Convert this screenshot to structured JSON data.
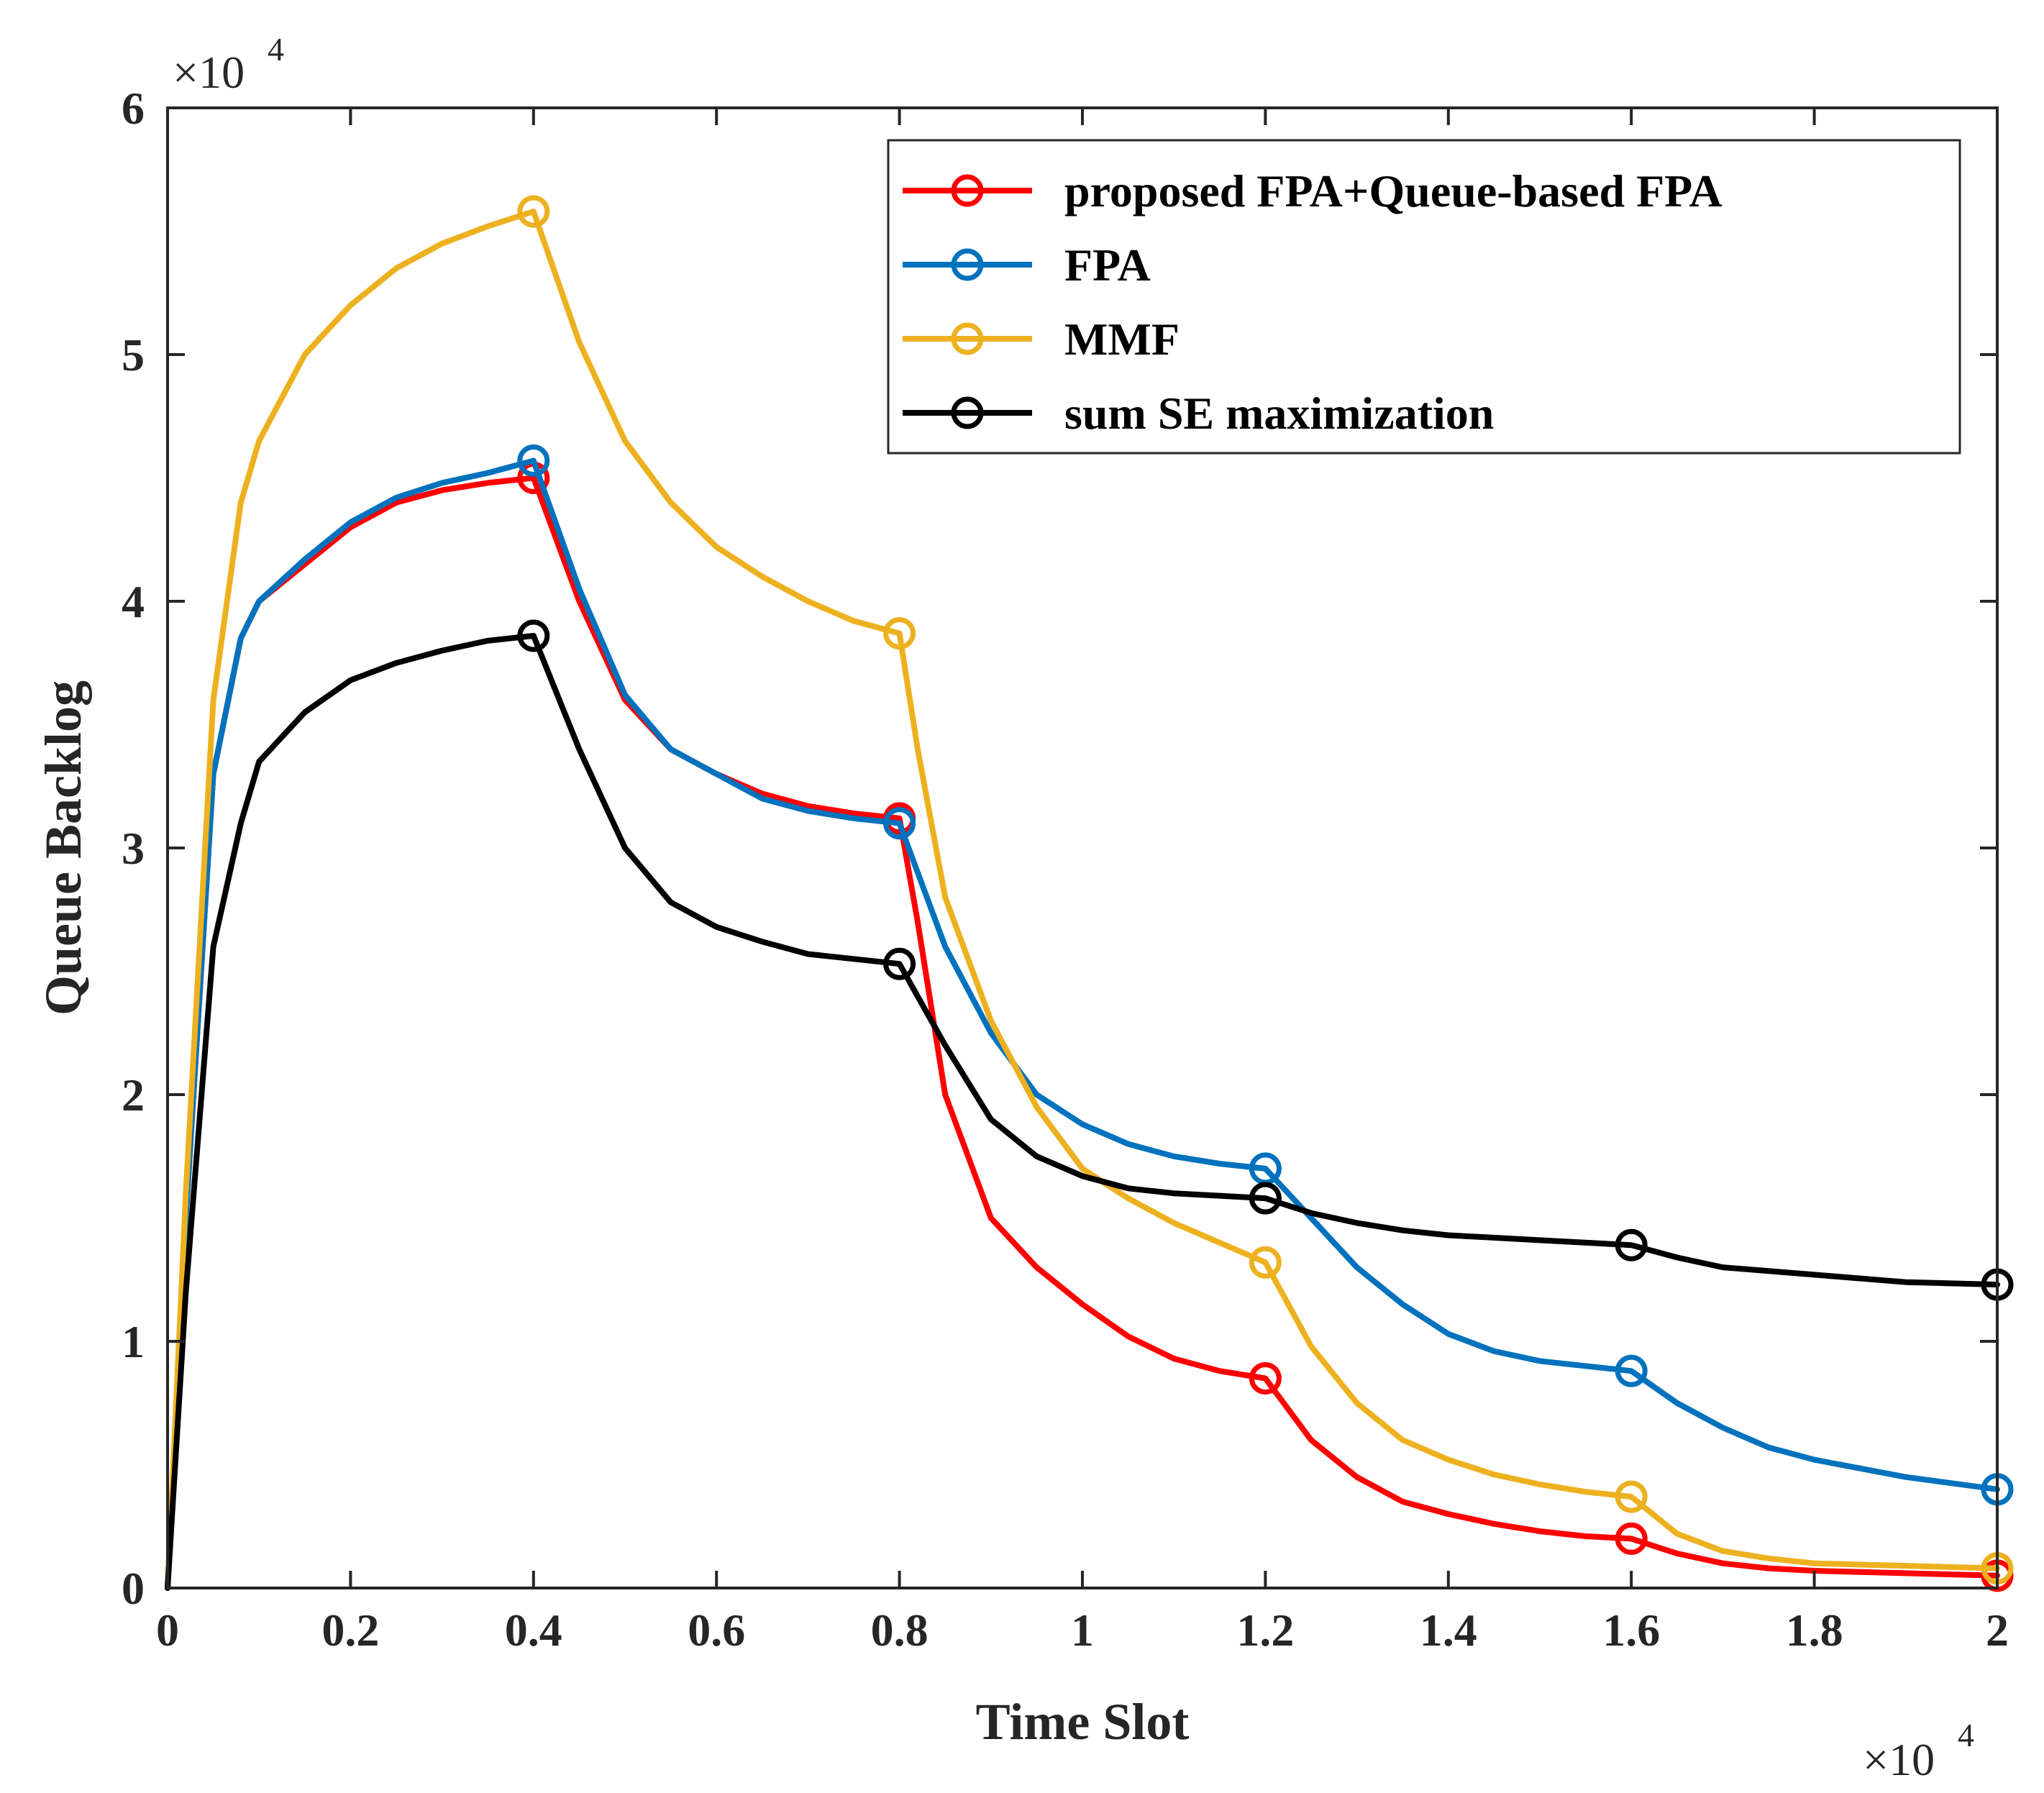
{
  "chart_data": {
    "type": "line",
    "title": "",
    "xlabel": "Time Slot",
    "ylabel": "Queue Backlog",
    "x_multiplier": "×10",
    "x_exponent": "4",
    "y_multiplier": "×10",
    "y_exponent": "4",
    "xlim": [
      0,
      2
    ],
    "ylim": [
      0,
      6
    ],
    "xticks": [
      0,
      0.2,
      0.4,
      0.6,
      0.8,
      1,
      1.2,
      1.4,
      1.6,
      1.8,
      2
    ],
    "xtick_labels": [
      "0",
      "0.2",
      "0.4",
      "0.6",
      "0.8",
      "1",
      "1.2",
      "1.4",
      "1.6",
      "1.8",
      "2"
    ],
    "yticks": [
      0,
      1,
      2,
      3,
      4,
      5,
      6
    ],
    "ytick_labels": [
      "0",
      "1",
      "2",
      "3",
      "4",
      "5",
      "6"
    ],
    "grid": false,
    "legend_position": "top-right",
    "series": [
      {
        "name": "proposed FPA+Queue-based FPA",
        "color": "#ff0000",
        "x": [
          0,
          0.02,
          0.05,
          0.08,
          0.1,
          0.15,
          0.2,
          0.25,
          0.3,
          0.35,
          0.4,
          0.45,
          0.5,
          0.55,
          0.6,
          0.65,
          0.7,
          0.75,
          0.8,
          0.82,
          0.85,
          0.88,
          0.9,
          0.95,
          1.0,
          1.05,
          1.1,
          1.15,
          1.2,
          1.25,
          1.3,
          1.35,
          1.4,
          1.45,
          1.5,
          1.55,
          1.6,
          1.65,
          1.7,
          1.75,
          1.8,
          1.9,
          2.0
        ],
        "y": [
          0,
          1.5,
          3.3,
          3.85,
          4.0,
          4.15,
          4.3,
          4.4,
          4.45,
          4.48,
          4.5,
          4.0,
          3.6,
          3.4,
          3.3,
          3.22,
          3.17,
          3.14,
          3.12,
          2.7,
          2.0,
          1.7,
          1.5,
          1.3,
          1.15,
          1.02,
          0.93,
          0.88,
          0.85,
          0.6,
          0.45,
          0.35,
          0.3,
          0.26,
          0.23,
          0.21,
          0.2,
          0.14,
          0.1,
          0.08,
          0.07,
          0.06,
          0.05
        ],
        "markers_x": [
          0.4,
          0.8,
          1.2,
          1.6,
          2.0
        ],
        "markers_y": [
          4.5,
          3.12,
          0.85,
          0.2,
          0.05
        ]
      },
      {
        "name": "FPA",
        "color": "#0072bd",
        "x": [
          0,
          0.02,
          0.05,
          0.08,
          0.1,
          0.15,
          0.2,
          0.25,
          0.3,
          0.35,
          0.4,
          0.45,
          0.5,
          0.55,
          0.6,
          0.65,
          0.7,
          0.75,
          0.8,
          0.85,
          0.9,
          0.95,
          1.0,
          1.05,
          1.1,
          1.15,
          1.2,
          1.25,
          1.3,
          1.35,
          1.4,
          1.45,
          1.5,
          1.55,
          1.6,
          1.65,
          1.7,
          1.75,
          1.8,
          1.9,
          2.0
        ],
        "y": [
          0,
          1.5,
          3.3,
          3.85,
          4.0,
          4.17,
          4.32,
          4.42,
          4.48,
          4.52,
          4.57,
          4.05,
          3.62,
          3.4,
          3.3,
          3.2,
          3.15,
          3.12,
          3.1,
          2.6,
          2.25,
          2.0,
          1.88,
          1.8,
          1.75,
          1.72,
          1.7,
          1.5,
          1.3,
          1.15,
          1.03,
          0.96,
          0.92,
          0.9,
          0.88,
          0.75,
          0.65,
          0.57,
          0.52,
          0.45,
          0.4
        ],
        "markers_x": [
          0.4,
          0.8,
          1.2,
          1.6,
          2.0
        ],
        "markers_y": [
          4.57,
          3.1,
          1.7,
          0.88,
          0.4
        ]
      },
      {
        "name": "MMF",
        "color": "#edb120",
        "x": [
          0,
          0.02,
          0.05,
          0.08,
          0.1,
          0.15,
          0.2,
          0.25,
          0.3,
          0.35,
          0.4,
          0.45,
          0.5,
          0.55,
          0.6,
          0.65,
          0.7,
          0.75,
          0.8,
          0.82,
          0.85,
          0.9,
          0.95,
          1.0,
          1.05,
          1.1,
          1.15,
          1.2,
          1.25,
          1.3,
          1.35,
          1.4,
          1.45,
          1.5,
          1.55,
          1.6,
          1.65,
          1.7,
          1.75,
          1.8,
          1.9,
          2.0
        ],
        "y": [
          0,
          1.6,
          3.6,
          4.4,
          4.65,
          5.0,
          5.2,
          5.35,
          5.45,
          5.52,
          5.58,
          5.05,
          4.65,
          4.4,
          4.22,
          4.1,
          4.0,
          3.92,
          3.87,
          3.4,
          2.8,
          2.3,
          1.95,
          1.7,
          1.58,
          1.48,
          1.4,
          1.32,
          0.98,
          0.75,
          0.6,
          0.52,
          0.46,
          0.42,
          0.39,
          0.37,
          0.22,
          0.15,
          0.12,
          0.1,
          0.09,
          0.08
        ],
        "markers_x": [
          0.4,
          0.8,
          1.2,
          1.6,
          2.0
        ],
        "markers_y": [
          5.58,
          3.87,
          1.32,
          0.37,
          0.08
        ]
      },
      {
        "name": "sum SE maximization",
        "color": "#000000",
        "x": [
          0,
          0.02,
          0.05,
          0.08,
          0.1,
          0.15,
          0.2,
          0.25,
          0.3,
          0.35,
          0.4,
          0.45,
          0.5,
          0.55,
          0.6,
          0.65,
          0.7,
          0.75,
          0.8,
          0.85,
          0.9,
          0.95,
          1.0,
          1.05,
          1.1,
          1.15,
          1.2,
          1.25,
          1.3,
          1.35,
          1.4,
          1.45,
          1.5,
          1.55,
          1.6,
          1.65,
          1.7,
          1.8,
          1.9,
          2.0
        ],
        "y": [
          0,
          1.2,
          2.6,
          3.1,
          3.35,
          3.55,
          3.68,
          3.75,
          3.8,
          3.84,
          3.86,
          3.4,
          3.0,
          2.78,
          2.68,
          2.62,
          2.57,
          2.55,
          2.53,
          2.2,
          1.9,
          1.75,
          1.67,
          1.62,
          1.6,
          1.59,
          1.58,
          1.52,
          1.48,
          1.45,
          1.43,
          1.42,
          1.41,
          1.4,
          1.39,
          1.34,
          1.3,
          1.27,
          1.24,
          1.23
        ],
        "markers_x": [
          0.4,
          0.8,
          1.2,
          1.6,
          2.0
        ],
        "markers_y": [
          3.86,
          2.53,
          1.58,
          1.39,
          1.23
        ]
      }
    ]
  }
}
